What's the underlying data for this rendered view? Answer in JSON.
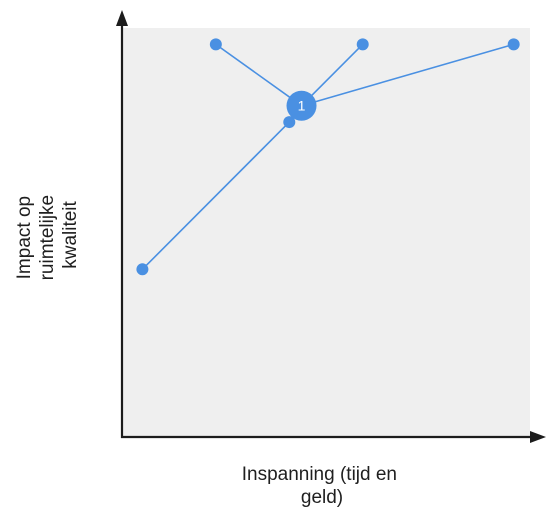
{
  "diagram": {
    "x_axis_label": [
      "Inspanning (tijd en",
      "geld)"
    ],
    "y_axis_label": [
      "Impact op",
      "ruimtelijke",
      "kwaliteit"
    ],
    "hub_label": "1",
    "colors": {
      "plot_background": "#efefef",
      "axis": "#1c1c1c",
      "accent": "#4a90e2",
      "hub_text": "#ffffff"
    },
    "points": [
      {
        "id": "p1",
        "effort": 0.05,
        "impact": 0.41
      },
      {
        "id": "p2",
        "effort": 0.23,
        "impact": 0.96
      },
      {
        "id": "p3",
        "effort": 0.59,
        "impact": 0.96
      },
      {
        "id": "p4",
        "effort": 0.96,
        "impact": 0.96
      }
    ],
    "hub": {
      "effort": 0.44,
      "impact": 0.81
    },
    "junction": {
      "effort": 0.41,
      "impact": 0.77
    },
    "connections": [
      [
        "p1",
        "junction"
      ],
      [
        "junction",
        "hub"
      ],
      [
        "hub",
        "p2"
      ],
      [
        "hub",
        "p3"
      ],
      [
        "hub",
        "p4"
      ]
    ]
  }
}
